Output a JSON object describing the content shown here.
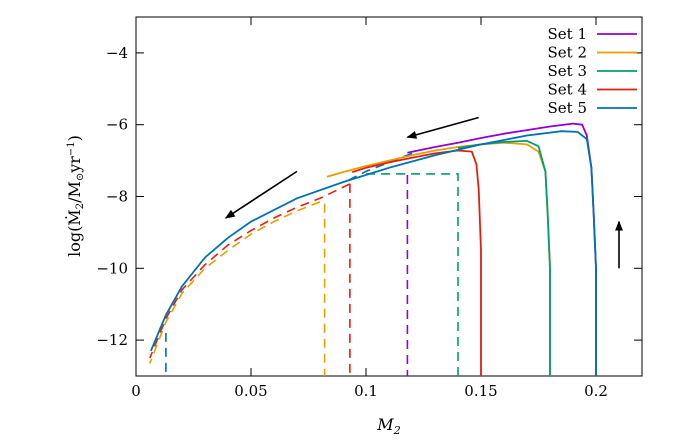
{
  "chart_data": {
    "type": "line",
    "title": "",
    "xlabel": "M_2",
    "ylabel": "log(Ṁ_2/M_⊙yr^-1)",
    "xlim": [
      0,
      0.22
    ],
    "ylim": [
      -13,
      -3
    ],
    "xticks": [
      0,
      0.05,
      0.1,
      0.15,
      0.2
    ],
    "xtick_labels": [
      "0",
      "0.05",
      "0.1",
      "0.15",
      "0.2"
    ],
    "yticks": [
      -12,
      -10,
      -8,
      -6,
      -4
    ],
    "ytick_labels": [
      "−12",
      "−10",
      "−8",
      "−6",
      "−4"
    ],
    "legend_position": "top-right",
    "series": [
      {
        "name": "Set 1",
        "color": "#9400d3",
        "solid": {
          "x": [
            0.2,
            0.2,
            0.199,
            0.198,
            0.196,
            0.194,
            0.19,
            0.18,
            0.17,
            0.16,
            0.15,
            0.14,
            0.13,
            0.118
          ],
          "y": [
            -13,
            -10,
            -8.5,
            -7.2,
            -6.3,
            -6.0,
            -5.97,
            -6.05,
            -6.15,
            -6.25,
            -6.37,
            -6.5,
            -6.62,
            -6.78
          ]
        },
        "dashed": {
          "x": [
            0.118,
            0.118
          ],
          "y": [
            -7.4,
            -13
          ]
        }
      },
      {
        "name": "Set 2",
        "color": "#e69f00",
        "solid": {
          "x": [
            0.18,
            0.18,
            0.179,
            0.178,
            0.175,
            0.17,
            0.16,
            0.15,
            0.14,
            0.13,
            0.12,
            0.11,
            0.1,
            0.09,
            0.083
          ],
          "y": [
            -13,
            -10,
            -8.5,
            -7.3,
            -6.75,
            -6.55,
            -6.5,
            -6.55,
            -6.62,
            -6.72,
            -6.85,
            -7.0,
            -7.15,
            -7.32,
            -7.45
          ]
        },
        "dashed": {
          "x": [
            0.08,
            0.07,
            0.06,
            0.05,
            0.04,
            0.03,
            0.02,
            0.013,
            0.006
          ],
          "y": [
            -8.15,
            -8.4,
            -8.7,
            -9.05,
            -9.5,
            -10.0,
            -10.7,
            -11.5,
            -12.65
          ]
        },
        "drop": {
          "x": [
            0.082,
            0.082
          ],
          "y": [
            -8.2,
            -13
          ]
        }
      },
      {
        "name": "Set 3",
        "color": "#009e73",
        "solid": {
          "x": [
            0.18,
            0.18,
            0.179,
            0.178,
            0.175,
            0.17,
            0.16,
            0.15,
            0.14
          ],
          "y": [
            -13,
            -10,
            -8.5,
            -7.3,
            -6.6,
            -6.45,
            -6.48,
            -6.55,
            -6.65
          ]
        },
        "dashed": {
          "x": [
            0.14,
            0.14,
            0.1
          ],
          "y": [
            -13,
            -7.37,
            -7.37
          ]
        }
      },
      {
        "name": "Set 4",
        "color": "#e51e10",
        "solid": {
          "x": [
            0.15,
            0.15,
            0.149,
            0.148,
            0.146,
            0.14,
            0.13,
            0.12,
            0.11,
            0.1,
            0.094
          ],
          "y": [
            -13,
            -9.5,
            -7.8,
            -7.1,
            -6.75,
            -6.72,
            -6.8,
            -6.92,
            -7.05,
            -7.2,
            -7.32
          ]
        },
        "dashed": {
          "x": [
            0.093,
            0.08,
            0.07,
            0.06,
            0.05,
            0.04,
            0.03,
            0.02,
            0.013,
            0.006
          ],
          "y": [
            -7.65,
            -8.05,
            -8.3,
            -8.6,
            -8.95,
            -9.35,
            -9.9,
            -10.6,
            -11.4,
            -12.5
          ]
        },
        "drop": {
          "x": [
            0.093,
            0.093
          ],
          "y": [
            -7.65,
            -13
          ]
        }
      },
      {
        "name": "Set 5",
        "color": "#0072b2",
        "solid": {
          "x": [
            0.2,
            0.2,
            0.199,
            0.198,
            0.196,
            0.192,
            0.185,
            0.17,
            0.15,
            0.13,
            0.11,
            0.09,
            0.07,
            0.05,
            0.04,
            0.03,
            0.02,
            0.013,
            0.0065
          ],
          "y": [
            -13,
            -10,
            -8.5,
            -7.2,
            -6.4,
            -6.2,
            -6.18,
            -6.3,
            -6.55,
            -6.85,
            -7.2,
            -7.6,
            -8.05,
            -8.7,
            -9.15,
            -9.7,
            -10.5,
            -11.3,
            -12.3
          ]
        },
        "dashed": {
          "x": [
            0.12,
            0.1,
            0.09
          ],
          "y": [
            -6.8,
            -7.3,
            -7.62
          ]
        },
        "drop": {
          "x": [
            0.013,
            0.013
          ],
          "y": [
            -11.8,
            -13
          ]
        }
      }
    ],
    "annotations": [
      {
        "type": "arrow",
        "from": [
          0.149,
          -5.8
        ],
        "to": [
          0.118,
          -6.35
        ]
      },
      {
        "type": "arrow",
        "from": [
          0.07,
          -7.3
        ],
        "to": [
          0.039,
          -8.6
        ]
      },
      {
        "type": "arrow",
        "from": [
          0.21,
          -10.0
        ],
        "to": [
          0.21,
          -8.7
        ]
      }
    ]
  }
}
